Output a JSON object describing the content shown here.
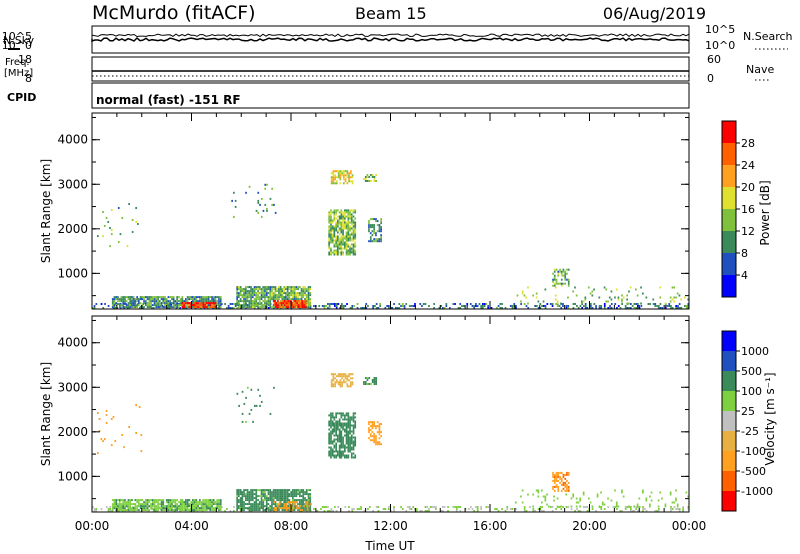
{
  "header": {
    "title": "McMurdo (fitACF)",
    "beam": "Beam 15",
    "date": "06/Aug/2019"
  },
  "noise_panel": {
    "left_label": "N.Sky",
    "right_label": "N.Search",
    "left_ticks": [
      "10^5",
      "10^0"
    ],
    "right_ticks": [
      "10^5",
      "10^0"
    ]
  },
  "freq_panel": {
    "left_label_1": "Freq.",
    "left_label_2": "[MHz]",
    "right_label": "Nave",
    "left_ticks": [
      "18",
      "8"
    ],
    "right_ticks": [
      "60",
      "0"
    ],
    "cpid_label": "CPID",
    "cpid_text": "normal (fast) -151 RF"
  },
  "colors": {
    "power": [
      "#0000ff",
      "#2050c0",
      "#3a8a5a",
      "#7fc03c",
      "#e0e030",
      "#ffa020",
      "#ff6000",
      "#ff0000"
    ],
    "velocity": [
      "#ff0000",
      "#ff6000",
      "#ffa020",
      "#e8b040",
      "#c0c0c0",
      "#7fd040",
      "#3a8a5a",
      "#2050c0",
      "#0000ff"
    ]
  },
  "chart_data": [
    {
      "type": "heatmap",
      "quantity": "power",
      "ylabel": "Slant Range [km]",
      "yticks": [
        "1000",
        "2000",
        "3000",
        "4000"
      ],
      "ylim": [
        200,
        4600
      ],
      "xlim": [
        0,
        24
      ],
      "colorbar_label": "Power [dB]",
      "colorbar_ticks": [
        "4",
        "8",
        "12",
        "16",
        "20",
        "24",
        "28"
      ],
      "colorbar_range": [
        0,
        32
      ],
      "regions": [
        {
          "t": [
            0.0,
            24.0
          ],
          "r": [
            200,
            320
          ],
          "v": 8,
          "density": 0.35
        },
        {
          "t": [
            0.8,
            5.2
          ],
          "r": [
            220,
            480
          ],
          "v": 10,
          "density": 0.85
        },
        {
          "t": [
            3.6,
            5.0
          ],
          "r": [
            220,
            340
          ],
          "v": 28,
          "density": 0.8
        },
        {
          "t": [
            5.8,
            8.8
          ],
          "r": [
            220,
            700
          ],
          "v": 12,
          "density": 0.85
        },
        {
          "t": [
            7.3,
            8.6
          ],
          "r": [
            220,
            380
          ],
          "v": 28,
          "density": 0.9
        },
        {
          "t": [
            9.5,
            10.6
          ],
          "r": [
            1400,
            2400
          ],
          "v": 14,
          "density": 0.75
        },
        {
          "t": [
            9.6,
            10.5
          ],
          "r": [
            3000,
            3300
          ],
          "v": 18,
          "density": 0.65
        },
        {
          "t": [
            10.9,
            11.4
          ],
          "r": [
            3050,
            3200
          ],
          "v": 14,
          "density": 0.6
        },
        {
          "t": [
            11.1,
            11.6
          ],
          "r": [
            1700,
            2200
          ],
          "v": 10,
          "density": 0.55
        },
        {
          "t": [
            18.5,
            19.2
          ],
          "r": [
            700,
            1100
          ],
          "v": 12,
          "density": 0.55
        },
        {
          "t": [
            0.2,
            2.0
          ],
          "r": [
            1500,
            2600
          ],
          "v": 12,
          "density": 0.03
        },
        {
          "t": [
            5.6,
            7.4
          ],
          "r": [
            2200,
            3000
          ],
          "v": 10,
          "density": 0.04
        },
        {
          "t": [
            17.0,
            24.0
          ],
          "r": [
            300,
            700
          ],
          "v": 14,
          "density": 0.08
        }
      ]
    },
    {
      "type": "heatmap",
      "quantity": "velocity",
      "ylabel": "Slant Range [km]",
      "yticks": [
        "1000",
        "2000",
        "3000",
        "4000"
      ],
      "ylim": [
        200,
        4600
      ],
      "xlim": [
        0,
        24
      ],
      "xticks": [
        "00:00",
        "04:00",
        "08:00",
        "12:00",
        "16:00",
        "20:00",
        "00:00"
      ],
      "xlabel": "Time UT",
      "colorbar_label": "Velocity [m s⁻¹]",
      "colorbar_ticks": [
        "-1000",
        "-500",
        "-100",
        "-25",
        "25",
        "100",
        "500",
        "1000"
      ],
      "regions": [
        {
          "t": [
            0.0,
            24.0
          ],
          "r": [
            200,
            320
          ],
          "v": 25,
          "density": 0.3
        },
        {
          "t": [
            0.8,
            5.2
          ],
          "r": [
            220,
            480
          ],
          "v": 80,
          "density": 0.85
        },
        {
          "t": [
            5.8,
            8.8
          ],
          "r": [
            220,
            700
          ],
          "v": 150,
          "density": 0.85
        },
        {
          "t": [
            7.3,
            8.8
          ],
          "r": [
            220,
            420
          ],
          "v": -150,
          "density": 0.4
        },
        {
          "t": [
            9.5,
            10.6
          ],
          "r": [
            1400,
            2400
          ],
          "v": 300,
          "density": 0.75
        },
        {
          "t": [
            9.6,
            10.5
          ],
          "r": [
            3000,
            3300
          ],
          "v": -50,
          "density": 0.6
        },
        {
          "t": [
            10.9,
            11.4
          ],
          "r": [
            3050,
            3200
          ],
          "v": 150,
          "density": 0.55
        },
        {
          "t": [
            11.1,
            11.6
          ],
          "r": [
            1700,
            2200
          ],
          "v": -200,
          "density": 0.55
        },
        {
          "t": [
            18.5,
            19.2
          ],
          "r": [
            650,
            1100
          ],
          "v": -400,
          "density": 0.6
        },
        {
          "t": [
            0.2,
            2.0
          ],
          "r": [
            1500,
            2600
          ],
          "v": -150,
          "density": 0.03
        },
        {
          "t": [
            5.6,
            7.4
          ],
          "r": [
            2200,
            3000
          ],
          "v": 150,
          "density": 0.04
        },
        {
          "t": [
            17.0,
            24.0
          ],
          "r": [
            300,
            700
          ],
          "v": 50,
          "density": 0.08
        }
      ]
    }
  ]
}
